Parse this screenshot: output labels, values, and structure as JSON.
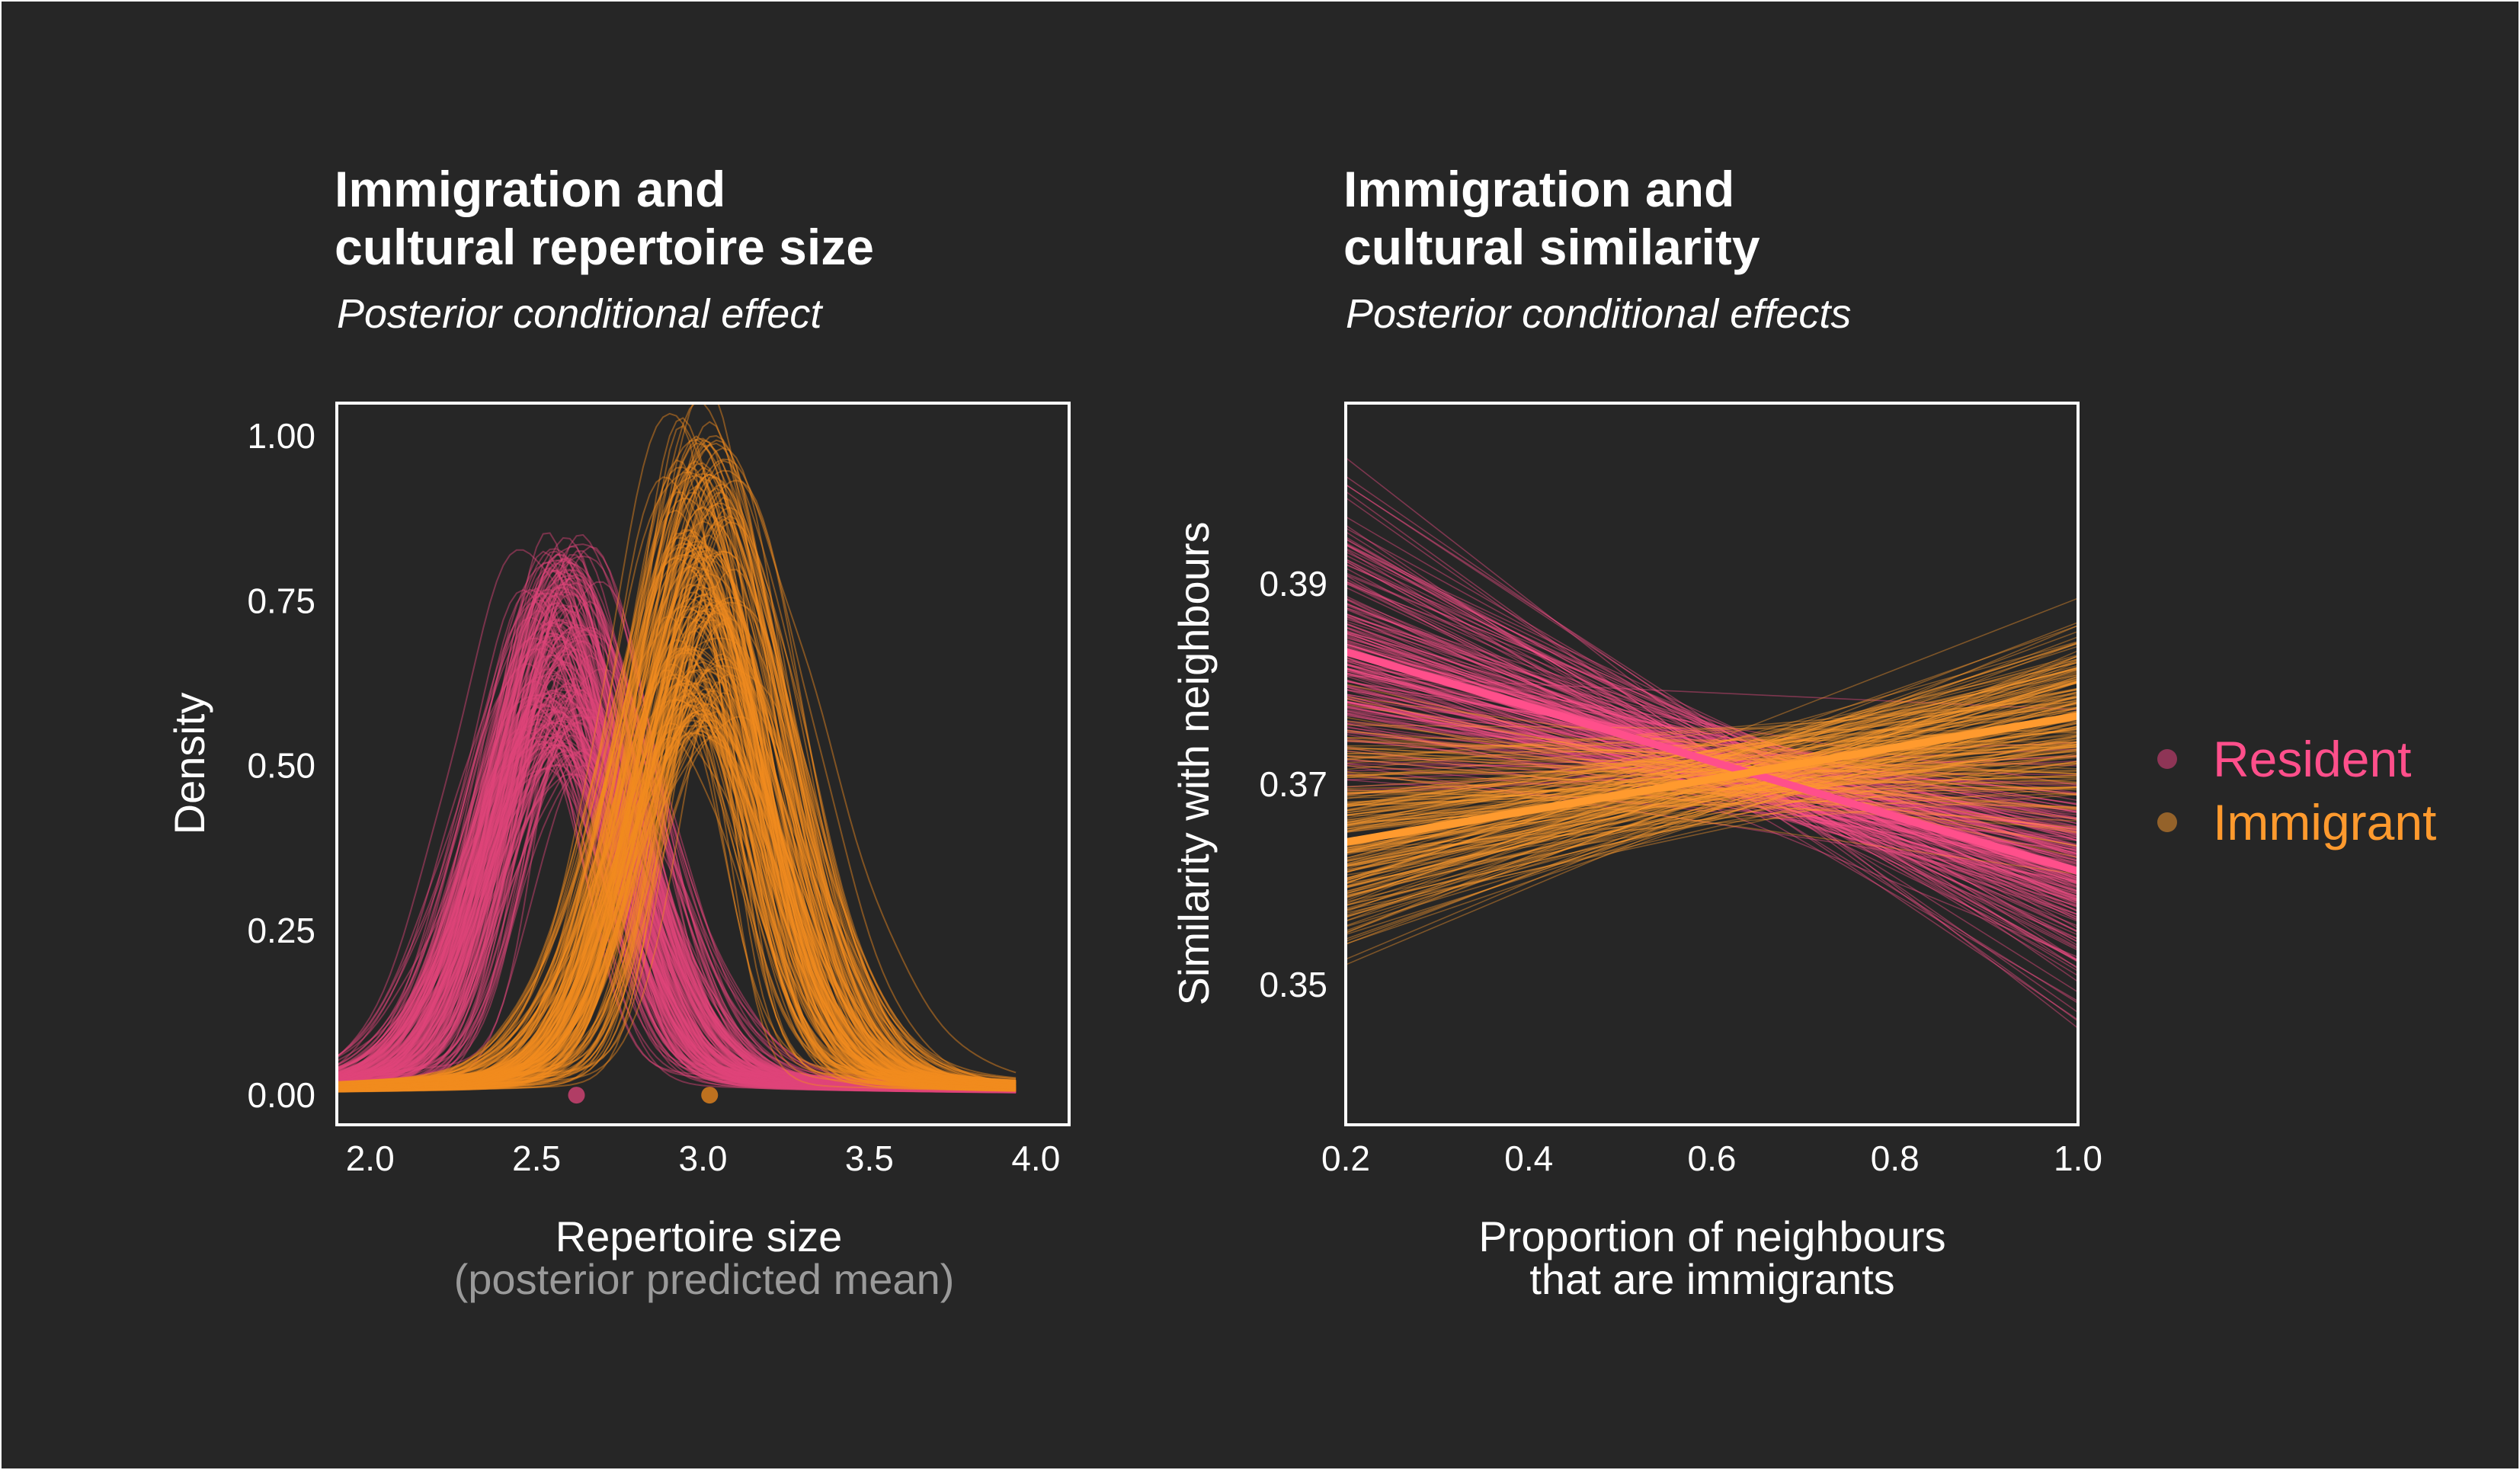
{
  "chart_data": [
    {
      "type": "line",
      "title": "Immigration and\ncultural repertoire size",
      "subtitle": "Posterior conditional effect",
      "xlabel": "Repertoire size",
      "xlabel_sub": "(posterior predicted mean)",
      "ylabel": "Density",
      "xlim": [
        1.9,
        4.1
      ],
      "ylim": [
        -0.045,
        1.05
      ],
      "xticks": [
        2.0,
        2.5,
        3.0,
        3.5,
        4.0
      ],
      "yticks": [
        0.0,
        0.25,
        0.5,
        0.75,
        1.0
      ],
      "xtick_labels": [
        "2.0",
        "2.5",
        "3.0",
        "3.5",
        "4.0"
      ],
      "ytick_labels": [
        "0.00",
        "0.25",
        "0.50",
        "0.75",
        "1.00"
      ],
      "series": [
        {
          "name": "Resident",
          "color": "#e0457b",
          "posterior_draws": 200,
          "density_peak_x": 2.57,
          "density_peak_range": [
            0.45,
            0.8
          ],
          "density_sd": 0.2,
          "point_mean": 2.62,
          "point_y": 0.0
        },
        {
          "name": "Immigrant",
          "color": "#f28b1e",
          "posterior_draws": 200,
          "density_peak_x": 3.0,
          "density_peak_range": [
            0.5,
            1.0
          ],
          "density_sd": 0.2,
          "point_mean": 3.02,
          "point_y": 0.0
        }
      ]
    },
    {
      "type": "line",
      "title": "Immigration and\ncultural similarity",
      "subtitle": "Posterior conditional effects",
      "xlabel": "Proportion of neighbours\nthat are immigrants",
      "ylabel": "Similarity with neighbours",
      "xlim": [
        0.2,
        1.0
      ],
      "ylim": [
        0.336,
        0.408
      ],
      "xticks": [
        0.2,
        0.4,
        0.6,
        0.8,
        1.0
      ],
      "yticks": [
        0.35,
        0.37,
        0.39
      ],
      "xtick_labels": [
        "0.2",
        "0.4",
        "0.6",
        "0.8",
        "1.0"
      ],
      "ytick_labels": [
        "0.35",
        "0.37",
        "0.39"
      ],
      "series": [
        {
          "name": "Resident",
          "color": "#ff4f8b",
          "x": [
            0.2,
            1.0
          ],
          "y": [
            0.3832,
            0.3613
          ],
          "posterior_draws": 200
        },
        {
          "name": "Immigrant",
          "color": "#ff9a2e",
          "x": [
            0.2,
            1.0
          ],
          "y": [
            0.3642,
            0.3768
          ],
          "posterior_draws": 200
        }
      ]
    }
  ],
  "legend": {
    "placement": "right",
    "items": [
      {
        "label": "Resident",
        "color": "#ff4f8b",
        "dot_color": "#8e3556"
      },
      {
        "label": "Immigrant",
        "color": "#ff9a2e",
        "dot_color": "#94622a"
      }
    ]
  },
  "colors": {
    "background": "#262626",
    "frame": "#ffffff",
    "text": "#ffffff",
    "muted_text": "#9a9a9a"
  }
}
